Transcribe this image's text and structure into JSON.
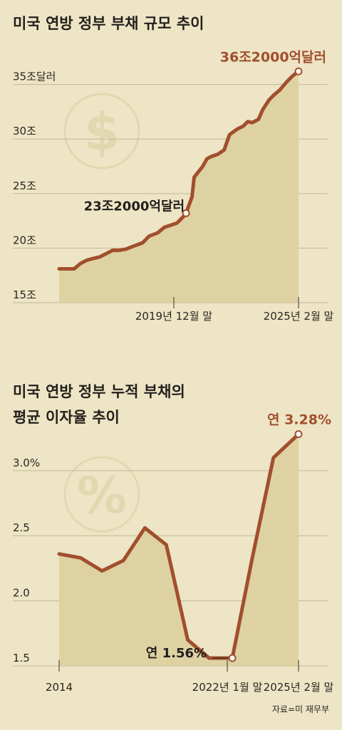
{
  "colors": {
    "background": "#EDE5C5",
    "area_fill": "#DED2A2",
    "line": "#A14F2E",
    "grid": "#C2B79A",
    "icon": "#E6DDB9"
  },
  "icons": [
    "dollar-icon",
    "percent-icon"
  ],
  "icon_glyphs": {
    "dollar": "$",
    "percent": "%"
  },
  "source": "자료=미 재무부",
  "chart_data": [
    {
      "type": "area",
      "title": "미국 연방 정부 부채 규모 추이",
      "ylim": [
        15,
        37
      ],
      "y_ticks": [
        15,
        20,
        25,
        30,
        35
      ],
      "y_tick_labels": [
        "15조",
        "20조",
        "25조",
        "30조",
        "35조달러"
      ],
      "x_tick_labels": [
        "2019년 12월 말",
        "2025년 2월 말"
      ],
      "grid": true,
      "series": [
        {
          "x": [
            2014.0,
            2014.7,
            2015.0,
            2015.3,
            2015.5,
            2015.9,
            2016.2,
            2016.5,
            2016.8,
            2017.1,
            2017.5,
            2017.9,
            2018.2,
            2018.6,
            2018.9,
            2019.2,
            2019.5,
            2019.8,
            2019.92,
            2020.2,
            2020.3,
            2020.7,
            2020.9,
            2021.1,
            2021.4,
            2021.7,
            2021.95,
            2022.3,
            2022.6,
            2022.8,
            2023.0,
            2023.3,
            2023.5,
            2023.8,
            2024.0,
            2024.3,
            2024.6,
            2024.9,
            2025.17
          ],
          "values": [
            18.1,
            18.1,
            18.6,
            18.9,
            19.0,
            19.2,
            19.5,
            19.8,
            19.8,
            19.9,
            20.2,
            20.5,
            21.1,
            21.4,
            21.9,
            22.1,
            22.3,
            22.9,
            23.2,
            24.7,
            26.5,
            27.5,
            28.2,
            28.4,
            28.6,
            29.0,
            30.4,
            30.9,
            31.2,
            31.6,
            31.5,
            31.8,
            32.7,
            33.6,
            34.0,
            34.5,
            35.2,
            35.8,
            36.2
          ]
        }
      ],
      "annotations": [
        {
          "x": 2019.92,
          "value": 23.2,
          "label": "23조2000억달러"
        },
        {
          "x": 2025.17,
          "value": 36.2,
          "label": "36조2000억달러"
        }
      ]
    },
    {
      "type": "area",
      "title": [
        "미국 연방 정부 누적 부채의",
        "평균 이자율 추이"
      ],
      "ylim": [
        1.5,
        3.3
      ],
      "y_ticks": [
        1.5,
        2.0,
        2.5,
        3.0
      ],
      "y_tick_labels": [
        "1.5",
        "2.0",
        "2.5",
        "3.0%"
      ],
      "x_tick_labels": [
        "2014",
        "2022년 1월 말",
        "2025년 2월 말"
      ],
      "grid": true,
      "series": [
        {
          "x": [
            2014,
            2015,
            2016,
            2017,
            2018,
            2019,
            2020,
            2021,
            2022.08,
            2023,
            2024,
            2025.17
          ],
          "values": [
            2.36,
            2.33,
            2.23,
            2.31,
            2.56,
            2.43,
            1.7,
            1.56,
            1.56,
            2.32,
            3.1,
            3.28
          ]
        }
      ],
      "annotations": [
        {
          "x": 2022.08,
          "value": 1.56,
          "label": "연 1.56%"
        },
        {
          "x": 2025.17,
          "value": 3.28,
          "label": "연 3.28%"
        }
      ]
    }
  ]
}
